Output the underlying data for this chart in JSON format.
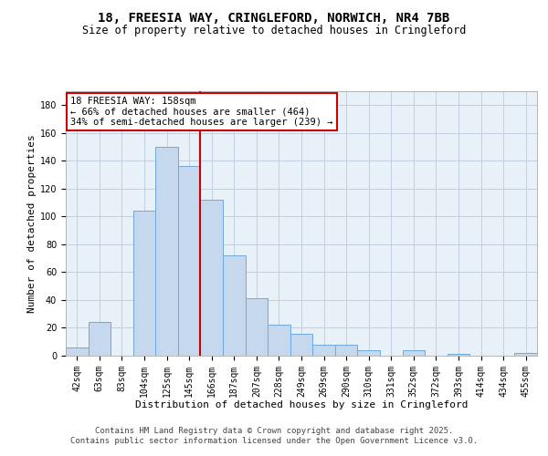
{
  "title1": "18, FREESIA WAY, CRINGLEFORD, NORWICH, NR4 7BB",
  "title2": "Size of property relative to detached houses in Cringleford",
  "xlabel": "Distribution of detached houses by size in Cringleford",
  "ylabel": "Number of detached properties",
  "bar_labels": [
    "42sqm",
    "63sqm",
    "83sqm",
    "104sqm",
    "125sqm",
    "145sqm",
    "166sqm",
    "187sqm",
    "207sqm",
    "228sqm",
    "249sqm",
    "269sqm",
    "290sqm",
    "310sqm",
    "331sqm",
    "352sqm",
    "372sqm",
    "393sqm",
    "414sqm",
    "434sqm",
    "455sqm"
  ],
  "bar_values": [
    6,
    24,
    0,
    104,
    150,
    136,
    112,
    72,
    41,
    22,
    16,
    8,
    8,
    4,
    0,
    4,
    0,
    1,
    0,
    0,
    2
  ],
  "bar_color": "#c5d8ee",
  "bar_edge_color": "#6eaadd",
  "vline_x": 5.5,
  "vline_color": "#cc0000",
  "annotation_title": "18 FREESIA WAY: 158sqm",
  "annotation_line1": "← 66% of detached houses are smaller (464)",
  "annotation_line2": "34% of semi-detached houses are larger (239) →",
  "annotation_box_color": "#ffffff",
  "annotation_box_edge": "#cc0000",
  "ylim": [
    0,
    190
  ],
  "yticks": [
    0,
    20,
    40,
    60,
    80,
    100,
    120,
    140,
    160,
    180
  ],
  "footer1": "Contains HM Land Registry data © Crown copyright and database right 2025.",
  "footer2": "Contains public sector information licensed under the Open Government Licence v3.0.",
  "bg_color": "#ffffff",
  "plot_bg_color": "#e8f0f8",
  "grid_color": "#c0d0e0",
  "title1_fontsize": 10,
  "title2_fontsize": 8.5,
  "xlabel_fontsize": 8,
  "ylabel_fontsize": 8,
  "tick_fontsize": 7,
  "annotation_fontsize": 7.5,
  "footer_fontsize": 6.5
}
